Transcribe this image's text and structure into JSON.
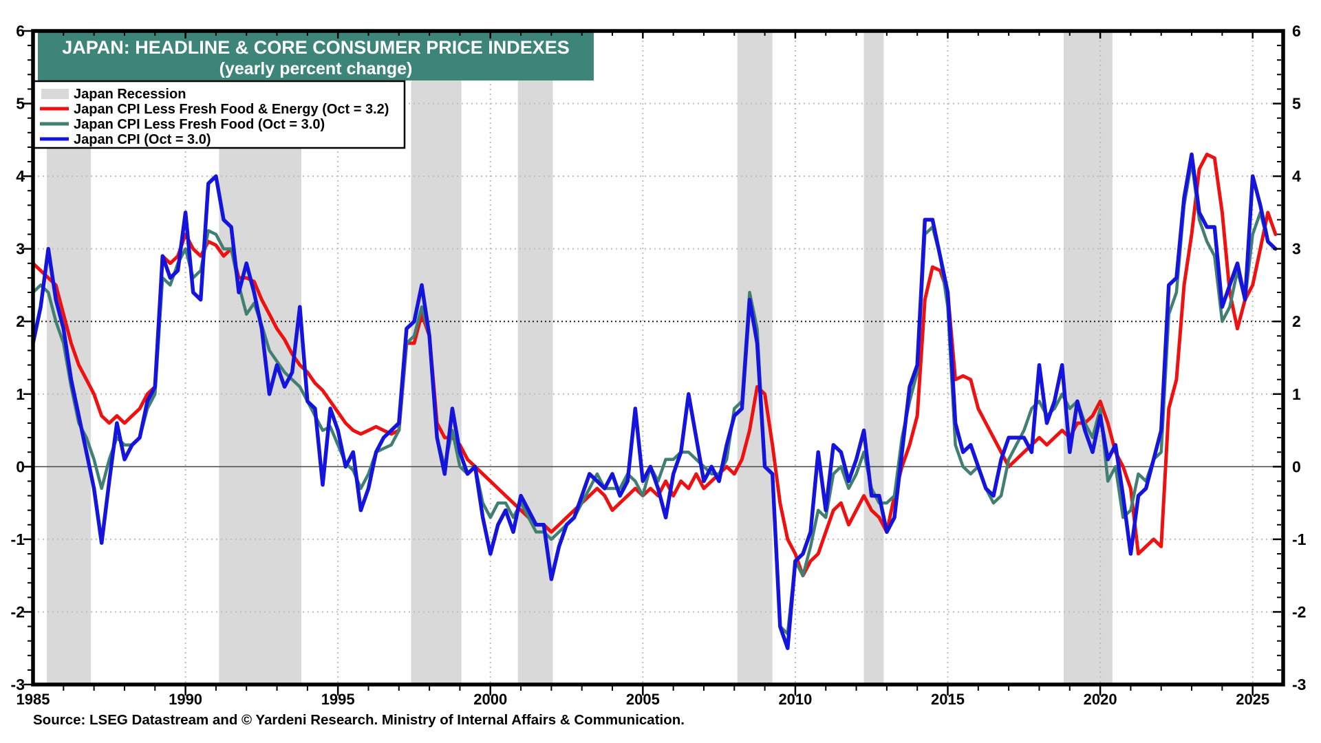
{
  "header": {
    "title": "JAPAN: HEADLINE & CORE CONSUMER PRICE INDEXES",
    "subtitle": "(yearly percent change)",
    "bg_color": "#3d8579",
    "text_color": "#ffffff"
  },
  "legend": {
    "items": [
      {
        "label": "Japan Recession",
        "type": "band",
        "color": "#d9d9d9"
      },
      {
        "label": "Japan CPI Less Fresh Food & Energy (Oct = 3.2)",
        "type": "line",
        "color": "#ee1111"
      },
      {
        "label": "Japan CPI Less Fresh Food (Oct = 3.0)",
        "type": "line",
        "color": "#417f72"
      },
      {
        "label": "Japan CPI  (Oct = 3.0)",
        "type": "line",
        "color": "#1414dd"
      }
    ]
  },
  "footer": {
    "source": "Source: LSEG Datastream and © Yardeni Research. Ministry of Internal Affairs & Communication."
  },
  "chart_data": {
    "type": "line",
    "title": "JAPAN: HEADLINE & CORE CONSUMER PRICE INDEXES",
    "subtitle": "(yearly percent change)",
    "xlabel": "",
    "ylabel": "yearly percent change",
    "xlim": [
      1985,
      2026
    ],
    "ylim": [
      -3,
      6
    ],
    "x_ticks_major": [
      1985,
      1990,
      1995,
      2000,
      2005,
      2010,
      2015,
      2020,
      2025
    ],
    "x_tick_labels": [
      "1985",
      "1990",
      "1995",
      "2000",
      "2005",
      "2010",
      "2015",
      "2020",
      "2025"
    ],
    "y_ticks": [
      6,
      5,
      4,
      3,
      2,
      1,
      0,
      -1,
      -2,
      -3
    ],
    "y_tick_labels": [
      "6",
      "5",
      "4",
      "3",
      "2",
      "1",
      "0",
      "-1",
      "-2",
      "-3"
    ],
    "grid": {
      "light_dotted_y": [
        5,
        4,
        3,
        1,
        -1,
        -2
      ],
      "dark_dotted_y": [
        2
      ],
      "solid_y": [
        0
      ],
      "light_color": "#bcbcbc",
      "dark_color": "#1a1a1a",
      "zero_color": "#444444",
      "vertical_dotted_at_major_x": true
    },
    "recession_band_color": "#d9d9d9",
    "recessions": [
      [
        1985.45,
        1986.9
      ],
      [
        1991.1,
        1993.8
      ],
      [
        1997.4,
        1999.05
      ],
      [
        2000.9,
        2002.05
      ],
      [
        2008.1,
        2009.25
      ],
      [
        2012.25,
        2012.9
      ],
      [
        2018.8,
        2020.4
      ]
    ],
    "x_start": 1985.0,
    "x_step": 0.25,
    "series": [
      {
        "name": "Japan CPI Less Fresh Food & Energy",
        "latest_label": "Oct = 3.2",
        "color": "#ee1111",
        "width": 5,
        "values": [
          2.8,
          2.7,
          2.6,
          2.5,
          2.1,
          1.7,
          1.4,
          1.2,
          1.0,
          0.7,
          0.6,
          0.7,
          0.6,
          0.7,
          0.8,
          1.0,
          1.1,
          2.9,
          2.8,
          2.9,
          3.2,
          3.0,
          2.9,
          3.1,
          3.05,
          2.9,
          3.0,
          2.6,
          2.6,
          2.55,
          2.3,
          2.1,
          1.9,
          1.75,
          1.55,
          1.4,
          1.3,
          1.15,
          1.05,
          0.9,
          0.75,
          0.6,
          0.5,
          0.45,
          0.5,
          0.55,
          0.5,
          0.45,
          0.5,
          1.7,
          1.7,
          2.1,
          1.8,
          0.6,
          0.4,
          0.4,
          0.3,
          0.1,
          0.0,
          -0.1,
          -0.2,
          -0.3,
          -0.4,
          -0.5,
          -0.6,
          -0.7,
          -0.8,
          -0.8,
          -0.9,
          -0.8,
          -0.7,
          -0.6,
          -0.5,
          -0.4,
          -0.3,
          -0.4,
          -0.6,
          -0.5,
          -0.4,
          -0.3,
          -0.4,
          -0.3,
          -0.4,
          -0.2,
          -0.4,
          -0.2,
          -0.3,
          -0.1,
          -0.3,
          -0.2,
          -0.1,
          0.0,
          -0.1,
          0.1,
          0.5,
          1.1,
          1.0,
          0.3,
          -0.5,
          -1.0,
          -1.2,
          -1.5,
          -1.3,
          -1.2,
          -0.9,
          -0.6,
          -0.5,
          -0.8,
          -0.6,
          -0.4,
          -0.6,
          -0.7,
          -0.9,
          -0.4,
          0.0,
          0.3,
          0.7,
          2.3,
          2.75,
          2.7,
          2.4,
          1.2,
          1.25,
          1.2,
          0.8,
          0.6,
          0.4,
          0.2,
          0.0,
          0.1,
          0.2,
          0.3,
          0.4,
          0.3,
          0.4,
          0.5,
          0.4,
          0.6,
          0.6,
          0.7,
          0.9,
          0.6,
          0.2,
          0.0,
          -0.3,
          -1.2,
          -1.1,
          -1.0,
          -1.1,
          0.8,
          1.2,
          2.5,
          3.2,
          4.1,
          4.3,
          4.25,
          3.5,
          2.4,
          1.9,
          2.3,
          2.5,
          3.0,
          3.5,
          3.2
        ]
      },
      {
        "name": "Japan CPI Less Fresh Food",
        "latest_label": "Oct = 3.0",
        "color": "#417f72",
        "width": 4.5,
        "values": [
          2.4,
          2.5,
          2.4,
          2.0,
          1.7,
          1.1,
          0.6,
          0.4,
          0.1,
          -0.3,
          0.1,
          0.4,
          0.3,
          0.3,
          0.4,
          0.8,
          1.0,
          2.6,
          2.5,
          2.8,
          3.0,
          2.6,
          2.7,
          3.25,
          3.2,
          3.0,
          3.0,
          2.5,
          2.1,
          2.25,
          1.95,
          1.6,
          1.45,
          1.3,
          1.2,
          1.1,
          0.9,
          0.7,
          0.5,
          0.55,
          0.3,
          0.05,
          -0.05,
          -0.3,
          -0.1,
          0.2,
          0.25,
          0.3,
          0.5,
          1.7,
          1.8,
          2.2,
          1.8,
          0.4,
          0.0,
          0.5,
          0.0,
          -0.1,
          0.0,
          -0.5,
          -0.7,
          -0.5,
          -0.5,
          -0.7,
          -0.5,
          -0.7,
          -0.9,
          -0.9,
          -1.0,
          -0.9,
          -0.8,
          -0.7,
          -0.5,
          -0.3,
          -0.1,
          -0.3,
          -0.3,
          -0.3,
          -0.1,
          -0.2,
          -0.4,
          0.0,
          -0.2,
          0.1,
          0.1,
          0.2,
          0.2,
          0.1,
          0.0,
          -0.1,
          -0.1,
          0.1,
          0.8,
          0.9,
          2.4,
          1.9,
          0.0,
          -0.1,
          -2.2,
          -2.3,
          -1.3,
          -1.5,
          -1.1,
          -0.6,
          -0.7,
          -0.1,
          0.0,
          -0.3,
          -0.1,
          0.2,
          -0.3,
          -0.5,
          -0.5,
          -0.4,
          0.4,
          0.9,
          1.3,
          3.2,
          3.3,
          2.9,
          2.2,
          0.3,
          0.0,
          -0.1,
          0.0,
          -0.3,
          -0.5,
          -0.4,
          0.1,
          0.3,
          0.5,
          0.8,
          0.9,
          0.7,
          0.8,
          1.0,
          0.8,
          0.9,
          0.6,
          0.4,
          0.8,
          -0.2,
          0.0,
          -0.7,
          -0.6,
          -0.1,
          -0.2,
          0.1,
          0.2,
          2.1,
          2.4,
          3.6,
          4.2,
          3.4,
          3.1,
          2.9,
          2.0,
          2.2,
          2.7,
          2.3,
          3.2,
          3.5,
          3.1,
          3.0
        ]
      },
      {
        "name": "Japan CPI",
        "latest_label": "Oct = 3.0",
        "color": "#1414dd",
        "width": 5.5,
        "values": [
          1.7,
          2.2,
          3.0,
          2.3,
          1.9,
          1.2,
          0.7,
          0.2,
          -0.3,
          -1.05,
          -0.2,
          0.6,
          0.1,
          0.3,
          0.4,
          0.9,
          1.1,
          2.9,
          2.6,
          2.7,
          3.5,
          2.4,
          2.3,
          3.9,
          4.0,
          3.4,
          3.3,
          2.4,
          2.8,
          2.4,
          1.9,
          1.0,
          1.4,
          1.1,
          1.3,
          2.2,
          0.9,
          0.8,
          -0.25,
          0.8,
          0.5,
          0.0,
          0.2,
          -0.6,
          -0.3,
          0.2,
          0.4,
          0.5,
          0.6,
          1.9,
          2.0,
          2.5,
          1.8,
          0.4,
          -0.1,
          0.8,
          0.2,
          -0.1,
          0.0,
          -0.7,
          -1.2,
          -0.8,
          -0.6,
          -0.9,
          -0.4,
          -0.6,
          -0.8,
          -0.8,
          -1.55,
          -1.1,
          -0.8,
          -0.7,
          -0.4,
          -0.1,
          -0.2,
          -0.3,
          -0.1,
          -0.4,
          -0.2,
          0.8,
          -0.2,
          0.0,
          -0.3,
          -0.7,
          -0.1,
          0.2,
          1.0,
          0.4,
          -0.2,
          0.0,
          -0.2,
          0.3,
          0.7,
          0.8,
          2.3,
          1.7,
          0.0,
          -0.1,
          -2.2,
          -2.5,
          -1.3,
          -1.2,
          -0.9,
          0.2,
          -0.6,
          0.3,
          0.2,
          -0.2,
          0.1,
          0.5,
          -0.4,
          -0.4,
          -0.9,
          -0.7,
          0.2,
          1.1,
          1.4,
          3.4,
          3.4,
          2.9,
          2.4,
          0.6,
          0.2,
          0.3,
          0.0,
          -0.3,
          -0.4,
          0.1,
          0.4,
          0.4,
          0.4,
          0.2,
          1.4,
          0.6,
          0.9,
          1.4,
          0.2,
          0.9,
          0.5,
          0.2,
          0.7,
          0.1,
          0.3,
          -0.4,
          -1.2,
          -0.4,
          -0.3,
          0.1,
          0.5,
          2.5,
          2.6,
          3.7,
          4.3,
          3.5,
          3.3,
          3.3,
          2.2,
          2.5,
          2.8,
          2.3,
          4.0,
          3.6,
          3.1,
          3.0
        ]
      }
    ],
    "legend_position": "top-left",
    "axis_color": "#000000"
  }
}
